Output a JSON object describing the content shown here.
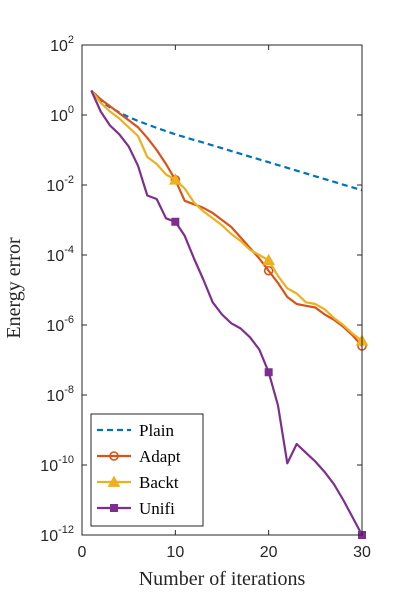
{
  "chart_data": {
    "type": "line",
    "xlabel": "Number of iterations",
    "ylabel": "Energy error",
    "xlim": [
      0,
      30
    ],
    "ylim_log10": [
      -12,
      2
    ],
    "yscale": "log",
    "grid": false,
    "legend_position": "bottom-left",
    "x_ticks": [
      {
        "value": 0,
        "label": "0"
      },
      {
        "value": 10,
        "label": "10"
      },
      {
        "value": 20,
        "label": "20"
      },
      {
        "value": 30,
        "label": "30"
      }
    ],
    "y_ticks": [
      {
        "exp": 2,
        "base": "10",
        "sup": "2"
      },
      {
        "exp": 0,
        "base": "10",
        "sup": "0"
      },
      {
        "exp": -2,
        "base": "10",
        "sup": "-2"
      },
      {
        "exp": -4,
        "base": "10",
        "sup": "-4"
      },
      {
        "exp": -6,
        "base": "10",
        "sup": "-6"
      },
      {
        "exp": -8,
        "base": "10",
        "sup": "-8"
      },
      {
        "exp": -10,
        "base": "10",
        "sup": "-10"
      },
      {
        "exp": -12,
        "base": "10",
        "sup": "-12"
      }
    ],
    "series": [
      {
        "name": "Plain",
        "color": "#0072BD",
        "dash": true,
        "marker": "none",
        "x": [
          1,
          2,
          3,
          4,
          5,
          6,
          7,
          8,
          9,
          10,
          11,
          12,
          13,
          14,
          15,
          16,
          17,
          18,
          19,
          20,
          21,
          22,
          23,
          24,
          25,
          26,
          27,
          28,
          29,
          30
        ],
        "log10y": [
          0.7,
          0.4,
          0.22,
          0.07,
          -0.06,
          -0.17,
          -0.27,
          -0.37,
          -0.46,
          -0.55,
          -0.63,
          -0.71,
          -0.79,
          -0.87,
          -0.95,
          -1.03,
          -1.11,
          -1.19,
          -1.27,
          -1.35,
          -1.43,
          -1.51,
          -1.59,
          -1.67,
          -1.75,
          -1.83,
          -1.91,
          -1.99,
          -2.07,
          -2.15
        ]
      },
      {
        "name": "Adapt",
        "color": "#D95319",
        "dash": false,
        "marker": "circle",
        "marker_x": [
          10,
          20,
          30
        ],
        "x": [
          1,
          2,
          3,
          4,
          5,
          6,
          7,
          8,
          9,
          10,
          11,
          12,
          13,
          14,
          15,
          16,
          17,
          18,
          19,
          20,
          21,
          22,
          23,
          24,
          25,
          26,
          27,
          28,
          29,
          30
        ],
        "log10y": [
          0.7,
          0.45,
          0.25,
          0.05,
          -0.15,
          -0.35,
          -0.65,
          -1.0,
          -1.4,
          -1.85,
          -2.45,
          -2.55,
          -2.65,
          -2.8,
          -3.0,
          -3.2,
          -3.5,
          -3.8,
          -4.1,
          -4.45,
          -4.8,
          -5.2,
          -5.4,
          -5.45,
          -5.5,
          -5.7,
          -5.85,
          -6.05,
          -6.3,
          -6.6
        ]
      },
      {
        "name": "Backt",
        "color": "#EDB120",
        "dash": false,
        "marker": "triangle",
        "marker_x": [
          10,
          20,
          30
        ],
        "x": [
          1,
          2,
          3,
          4,
          5,
          6,
          7,
          8,
          9,
          10,
          11,
          12,
          13,
          14,
          15,
          16,
          17,
          18,
          19,
          20,
          21,
          22,
          23,
          24,
          25,
          26,
          27,
          28,
          29,
          30
        ],
        "log10y": [
          0.7,
          0.35,
          0.1,
          -0.1,
          -0.35,
          -0.6,
          -1.2,
          -1.4,
          -1.7,
          -1.85,
          -2.1,
          -2.5,
          -2.75,
          -2.95,
          -3.15,
          -3.4,
          -3.6,
          -3.85,
          -4.0,
          -4.15,
          -4.6,
          -4.95,
          -5.1,
          -5.35,
          -5.4,
          -5.55,
          -5.8,
          -6.0,
          -6.25,
          -6.45
        ]
      },
      {
        "name": "Unifi",
        "color": "#7E2F8E",
        "dash": false,
        "marker": "square",
        "marker_x": [
          10,
          20,
          30
        ],
        "x": [
          1,
          2,
          3,
          4,
          5,
          6,
          7,
          8,
          9,
          10,
          11,
          12,
          13,
          14,
          15,
          16,
          17,
          18,
          19,
          20,
          21,
          22,
          23,
          24,
          25,
          26,
          27,
          28,
          29,
          30
        ],
        "log10y": [
          0.7,
          0.1,
          -0.3,
          -0.55,
          -0.9,
          -1.45,
          -2.3,
          -2.4,
          -2.95,
          -3.05,
          -3.45,
          -4.1,
          -4.7,
          -5.35,
          -5.7,
          -5.95,
          -6.1,
          -6.35,
          -6.7,
          -7.35,
          -8.3,
          -9.95,
          -9.4,
          -9.65,
          -9.9,
          -10.2,
          -10.55,
          -11.0,
          -11.5,
          -12.0
        ]
      }
    ]
  }
}
